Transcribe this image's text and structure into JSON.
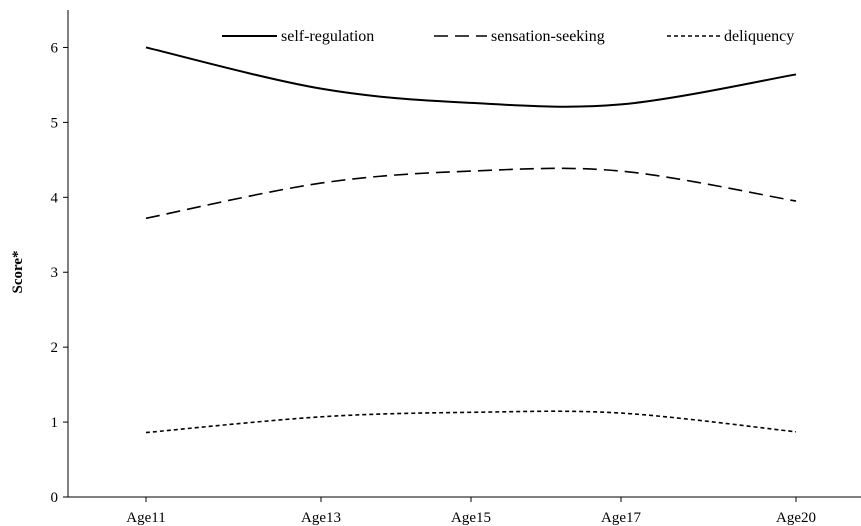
{
  "chart_data": {
    "type": "line",
    "categories": [
      "Age11",
      "Age13",
      "Age15",
      "Age17",
      "Age20"
    ],
    "ylabel": "Score*",
    "xlabel": "",
    "ylim": [
      0,
      6.5
    ],
    "yticks": [
      "0",
      "1",
      "2",
      "3",
      "4",
      "5",
      "6"
    ],
    "grid": false,
    "legend_position": "top",
    "series": [
      {
        "name": "self-regulation",
        "values": [
          6.0,
          5.45,
          5.26,
          5.24,
          5.64
        ],
        "dash": "solid"
      },
      {
        "name": "sensation-seeking",
        "values": [
          3.72,
          4.19,
          4.35,
          4.35,
          3.95
        ],
        "dash": "long-dash"
      },
      {
        "name": "deliquency",
        "values": [
          0.86,
          1.07,
          1.13,
          1.12,
          0.87
        ],
        "dash": "short-dash"
      }
    ]
  }
}
